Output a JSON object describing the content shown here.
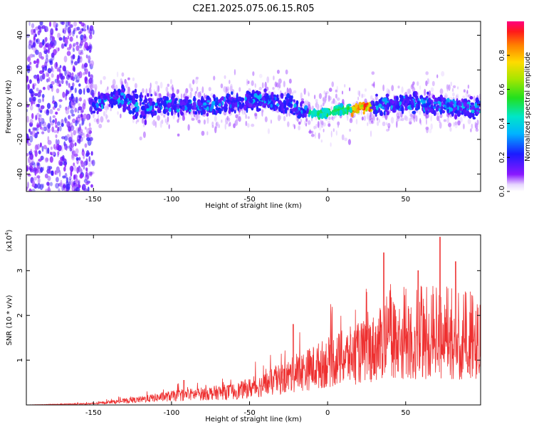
{
  "title": "C2E1.2025.075.06.15.R05",
  "colors": {
    "snr_line": "#ee3030",
    "axis": "#000000"
  },
  "chart_data": [
    {
      "type": "heatmap",
      "name": "spectrogram",
      "xlabel": "Height of straight line (km)",
      "ylabel": "Frequency (Hz)",
      "xlim": [
        -193,
        98
      ],
      "ylim": [
        -50,
        48
      ],
      "xticks": [
        -150,
        -100,
        -50,
        0,
        50
      ],
      "yticks": [
        -40,
        -20,
        0,
        20,
        40
      ],
      "colorbar": {
        "label": "Normalized spectral amplitude",
        "range": [
          0,
          1
        ],
        "ticks": [
          "0.0",
          "0.2",
          "0.4",
          "0.6",
          "0.8"
        ],
        "tick_values": [
          0.0,
          0.2,
          0.4,
          0.6,
          0.8
        ]
      },
      "band_center_hz": [
        {
          "x": -150,
          "y": 0
        },
        {
          "x": -133,
          "y": 4
        },
        {
          "x": -120,
          "y": -2
        },
        {
          "x": -100,
          "y": 0
        },
        {
          "x": -80,
          "y": -1
        },
        {
          "x": -60,
          "y": 1
        },
        {
          "x": -40,
          "y": 3
        },
        {
          "x": -25,
          "y": 0
        },
        {
          "x": -10,
          "y": -6
        },
        {
          "x": 0,
          "y": -4
        },
        {
          "x": 10,
          "y": -3
        },
        {
          "x": 20,
          "y": -2
        },
        {
          "x": 28,
          "y": -1
        },
        {
          "x": 50,
          "y": 1
        },
        {
          "x": 70,
          "y": 0
        },
        {
          "x": 98,
          "y": -2
        }
      ],
      "peak_amplitude_region_km": [
        15,
        28
      ]
    },
    {
      "type": "line",
      "name": "snr",
      "xlabel": "Height of straight line (km)",
      "ylabel": "SNR (10 * v/v)",
      "y_multiplier": "(x10",
      "y_multiplier_exp": "4",
      "y_multiplier_close": ")",
      "xlim": [
        -193,
        98
      ],
      "ylim": [
        0,
        3.8
      ],
      "xticks": [
        -150,
        -100,
        -50,
        0,
        50
      ],
      "yticks": [
        1,
        2,
        3
      ],
      "envelope": [
        {
          "x": -193,
          "y": 0.0
        },
        {
          "x": -150,
          "y": 0.03
        },
        {
          "x": -120,
          "y": 0.12
        },
        {
          "x": -100,
          "y": 0.2
        },
        {
          "x": -80,
          "y": 0.25
        },
        {
          "x": -60,
          "y": 0.3
        },
        {
          "x": -40,
          "y": 0.45
        },
        {
          "x": -20,
          "y": 0.7
        },
        {
          "x": 0,
          "y": 0.95
        },
        {
          "x": 20,
          "y": 1.15
        },
        {
          "x": 32,
          "y": 1.3
        },
        {
          "x": 35,
          "y": 1.4
        },
        {
          "x": 60,
          "y": 1.4
        },
        {
          "x": 80,
          "y": 1.35
        },
        {
          "x": 98,
          "y": 1.3
        }
      ],
      "notable_peaks": [
        {
          "x": -92,
          "y": 0.55
        },
        {
          "x": -28,
          "y": 0.8
        },
        {
          "x": -22,
          "y": 1.8
        },
        {
          "x": 36,
          "y": 3.4
        },
        {
          "x": 58,
          "y": 3.0
        },
        {
          "x": 72,
          "y": 3.75
        },
        {
          "x": 82,
          "y": 3.2
        }
      ]
    }
  ]
}
